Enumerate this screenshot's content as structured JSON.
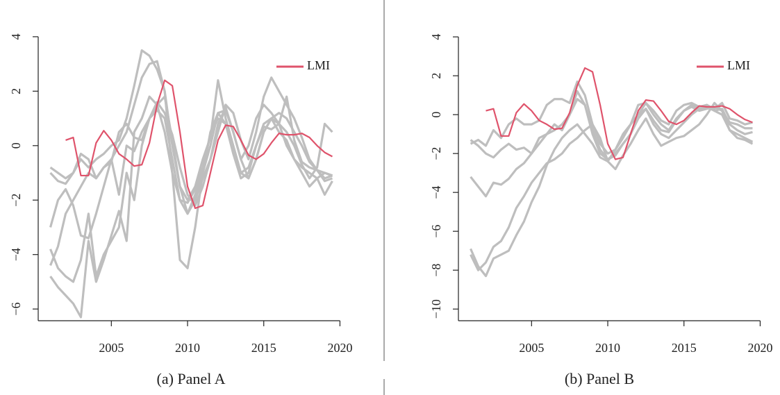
{
  "chart_data": [
    {
      "type": "line",
      "caption": "(a) Panel A",
      "x": [
        2001,
        2001.5,
        2002,
        2002.5,
        2003,
        2003.5,
        2004,
        2004.5,
        2005,
        2005.5,
        2006,
        2006.5,
        2007,
        2007.5,
        2008,
        2008.5,
        2009,
        2009.5,
        2010,
        2010.5,
        2011,
        2011.5,
        2012,
        2012.5,
        2013,
        2013.5,
        2014,
        2014.5,
        2015,
        2015.5,
        2016,
        2016.5,
        2017,
        2017.5,
        2018,
        2018.5,
        2019,
        2019.5
      ],
      "xlim": [
        2000.2,
        2020.8
      ],
      "xticks": [
        2005,
        2010,
        2015,
        2020
      ],
      "ylim": [
        -6.43,
        4.38
      ],
      "yticks": [
        {
          "value": -6,
          "label": "−6"
        },
        {
          "value": -4,
          "label": "−4"
        },
        {
          "value": -2,
          "label": "−2"
        },
        0,
        2,
        4
      ],
      "legend": "top-right",
      "series": [
        {
          "color": "#bebebe",
          "values": [
            -0.8,
            -1,
            -1.2,
            -1,
            -0.5,
            -0.8,
            -0.5,
            -0.3,
            0,
            0.2,
            1,
            2.2,
            3.5,
            3.3,
            2.8,
            2,
            -1,
            -4.2,
            -4.5,
            -3,
            -1,
            0.5,
            1.2,
            1.3,
            0.5,
            -0.5,
            0,
            1,
            1.5,
            1.2,
            0.8,
            0,
            -0.5,
            -0.8,
            -1,
            -1.2,
            -1,
            -1.1
          ]
        },
        {
          "color": "#bebebe",
          "values": [
            -3,
            -2,
            -1.6,
            -2.2,
            -3.3,
            -3.4,
            -2.5,
            -1.5,
            -0.5,
            0,
            0.5,
            1.5,
            2.5,
            3,
            3.1,
            2,
            0,
            -1.5,
            -2.5,
            -2,
            -1.2,
            -0.5,
            0.5,
            1.5,
            1.2,
            0.2,
            -0.5,
            0.5,
            1.8,
            2.5,
            2,
            1.5,
            1,
            0.3,
            -0.5,
            -0.9,
            -1.3,
            -1.2
          ]
        },
        {
          "color": "#bebebe",
          "values": [
            -4.8,
            -5.2,
            -5.5,
            -5.8,
            -6.3,
            -3.5,
            -5,
            -4.2,
            -3.3,
            -2.4,
            -3.5,
            0.5,
            1,
            1.8,
            1.5,
            0.5,
            -1,
            -2,
            -2.5,
            -1.8,
            -1,
            0,
            1.2,
            0.8,
            -0.2,
            -1,
            -0.8,
            0,
            0.8,
            1,
            0.5,
            0.2,
            -0.5,
            -1,
            -1.5,
            -1.2,
            -1.8,
            -1.3
          ]
        },
        {
          "color": "#bebebe",
          "values": [
            -3.8,
            -4.5,
            -4.8,
            -5,
            -4.2,
            -2.5,
            -4.8,
            -4,
            -3.5,
            -3,
            -1,
            -2,
            0,
            1,
            1.5,
            1.8,
            0.2,
            -1.5,
            -2,
            -1.5,
            -0.5,
            0.3,
            2.4,
            1,
            0,
            -1,
            -1.2,
            -0.5,
            0.5,
            1,
            0.8,
            0.5,
            0,
            -0.7,
            -1.2,
            -0.8,
            0.8,
            0.5
          ]
        },
        {
          "color": "#bebebe",
          "values": [
            -1,
            -1.3,
            -1.4,
            -1,
            -0.3,
            -0.5,
            -1.2,
            -0.8,
            -0.6,
            0.5,
            0.8,
            0.3,
            0.2,
            1,
            1.6,
            1.2,
            0.4,
            -0.8,
            -1.8,
            -2.2,
            -1.5,
            -0.5,
            0.8,
            1.4,
            0.5,
            -0.5,
            -1.2,
            -0.5,
            0.5,
            1,
            1.2,
            1,
            0.5,
            0,
            -0.6,
            -0.9,
            -1,
            -1.1
          ]
        },
        {
          "color": "#bebebe",
          "values": [
            -4.4,
            -3.7,
            -2.5,
            -2,
            -1.5,
            -1,
            -1.2,
            -0.8,
            -0.5,
            -1.8,
            0,
            -0.2,
            0.5,
            1,
            1.3,
            1,
            -0.5,
            -2,
            -2.1,
            -1.6,
            -0.8,
            0.4,
            1,
            0.8,
            -0.3,
            -1.2,
            -1,
            0,
            0.7,
            0.6,
            0.8,
            1.8,
            0.2,
            -0.6,
            -0.8,
            -0.9,
            -1.2,
            -1.1
          ]
        },
        {
          "name": "LMI",
          "color": "#df536b",
          "values": [
            null,
            null,
            0.2,
            0.3,
            -1.1,
            -1.1,
            0.1,
            0.55,
            0.2,
            -0.3,
            -0.5,
            -0.75,
            -0.7,
            0.1,
            1.5,
            2.4,
            2.2,
            0.5,
            -1.5,
            -2.3,
            -2.2,
            -1.0,
            0.2,
            0.75,
            0.7,
            0.2,
            -0.35,
            -0.5,
            -0.3,
            0.1,
            0.45,
            0.4,
            0.4,
            0.45,
            0.3,
            0,
            -0.25,
            -0.4
          ]
        }
      ]
    },
    {
      "type": "line",
      "caption": "(b) Panel B",
      "x": [
        2001,
        2001.5,
        2002,
        2002.5,
        2003,
        2003.5,
        2004,
        2004.5,
        2005,
        2005.5,
        2006,
        2006.5,
        2007,
        2007.5,
        2008,
        2008.5,
        2009,
        2009.5,
        2010,
        2010.5,
        2011,
        2011.5,
        2012,
        2012.5,
        2013,
        2013.5,
        2014,
        2014.5,
        2015,
        2015.5,
        2016,
        2016.5,
        2017,
        2017.5,
        2018,
        2018.5,
        2019,
        2019.5
      ],
      "xlim": [
        2000.2,
        2020.8
      ],
      "xticks": [
        2005,
        2010,
        2015,
        2020
      ],
      "ylim": [
        -10.6,
        4.54
      ],
      "yticks": [
        {
          "value": -10,
          "label": "−10"
        },
        {
          "value": -8,
          "label": "−8"
        },
        {
          "value": -6,
          "label": "−6"
        },
        {
          "value": -4,
          "label": "−4"
        },
        {
          "value": -2,
          "label": "−2"
        },
        0,
        2,
        4
      ],
      "legend": "top-right",
      "series": [
        {
          "color": "#bebebe",
          "values": [
            -1.5,
            -1.3,
            -1.6,
            -0.8,
            -1.2,
            -0.5,
            -0.2,
            -0.5,
            -0.5,
            -0.3,
            0.5,
            0.8,
            0.8,
            0.6,
            1.7,
            1,
            -0.5,
            -1.5,
            -2,
            -1.8,
            -1,
            -0.5,
            0.5,
            0.6,
            0.2,
            -0.3,
            -0.5,
            0.2,
            0.5,
            0.6,
            0.4,
            0.5,
            0.3,
            0.6,
            -0.2,
            -0.3,
            -0.5,
            -0.4
          ]
        },
        {
          "color": "#bebebe",
          "values": [
            -1.3,
            -1.6,
            -2,
            -2.2,
            -1.8,
            -1.5,
            -1.8,
            -1.7,
            -2,
            -1.2,
            -1,
            -0.5,
            -0.8,
            0,
            1.2,
            0.5,
            -1,
            -2,
            -2.3,
            -2,
            -1.5,
            -1,
            0,
            0.6,
            0,
            -0.5,
            -0.8,
            -0.2,
            0.2,
            0.5,
            0.3,
            0.4,
            0.2,
            0.3,
            -0.5,
            -0.8,
            -1,
            -0.9
          ]
        },
        {
          "color": "#bebebe",
          "values": [
            -3.2,
            -3.7,
            -4.2,
            -3.5,
            -3.6,
            -3.3,
            -2.8,
            -2.5,
            -2,
            -1.5,
            -1,
            -0.8,
            -0.5,
            0,
            0.8,
            0.5,
            -0.8,
            -1.8,
            -2.3,
            -2.1,
            -1.5,
            -1,
            -0.2,
            0.3,
            -0.3,
            -0.8,
            -0.9,
            -0.3,
            0.2,
            0.4,
            0.2,
            0.3,
            0.4,
            0.2,
            -0.4,
            -0.5,
            -0.7,
            -0.7
          ]
        },
        {
          "color": "#bebebe",
          "values": [
            -6.9,
            -7.8,
            -8.3,
            -7.4,
            -7.2,
            -7,
            -6.2,
            -5.5,
            -4.5,
            -3.7,
            -2.6,
            -1.8,
            -1.2,
            -0.8,
            -0.5,
            -1,
            -1.5,
            -2.2,
            -2.4,
            -1.8,
            -1.2,
            -0.5,
            0,
            0.3,
            -0.5,
            -1,
            -1.2,
            -0.8,
            -0.4,
            0,
            0.3,
            0.5,
            0.2,
            0,
            -0.8,
            -1,
            -1.2,
            -1.4
          ]
        },
        {
          "color": "#bebebe",
          "values": [
            -7.2,
            -8,
            -7.6,
            -6.8,
            -6.5,
            -5.8,
            -4.8,
            -4.2,
            -3.5,
            -3,
            -2.5,
            -2.3,
            -2,
            -1.5,
            -1.2,
            -0.8,
            -0.5,
            -1.2,
            -2.4,
            -2.8,
            -2.1,
            -1.5,
            -0.8,
            -0.2,
            -1,
            -1.6,
            -1.4,
            -1.2,
            -1.1,
            -0.8,
            -0.5,
            0,
            0.6,
            0.2,
            -0.8,
            -1.2,
            -1.3,
            -1.5
          ]
        },
        {
          "name": "LMI",
          "color": "#df536b",
          "values": [
            null,
            null,
            0.2,
            0.3,
            -1.1,
            -1.1,
            0.1,
            0.55,
            0.2,
            -0.3,
            -0.5,
            -0.75,
            -0.7,
            0.1,
            1.5,
            2.4,
            2.2,
            0.5,
            -1.5,
            -2.3,
            -2.2,
            -1.0,
            0.2,
            0.75,
            0.7,
            0.2,
            -0.35,
            -0.5,
            -0.3,
            0.1,
            0.45,
            0.4,
            0.4,
            0.45,
            0.3,
            0,
            -0.25,
            -0.4
          ]
        }
      ]
    }
  ]
}
